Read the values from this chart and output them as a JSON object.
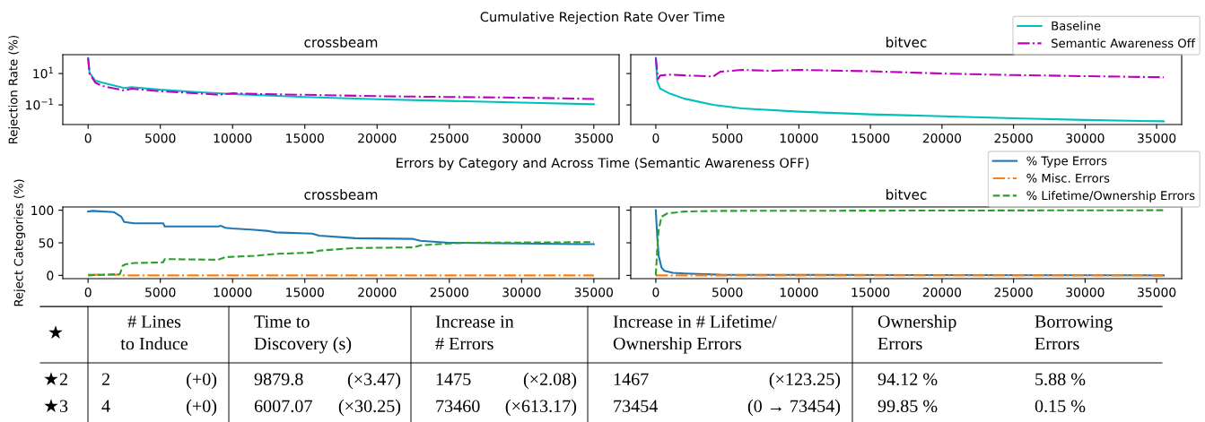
{
  "chart_data": [
    {
      "type": "line",
      "title": "crossbeam",
      "ylabel": "Rejection Rate (%)",
      "annotations": [
        "Cumulative Rejection Rate Over Time"
      ],
      "log": "y",
      "xlim": [
        -1750,
        36750
      ],
      "xticks": [
        0,
        5000,
        10000,
        15000,
        20000,
        25000,
        30000,
        35000
      ],
      "ylim": [
        0.0056,
        160
      ],
      "yticks": [
        {
          "value": 0.1,
          "label": "10$^{−1}$"
        },
        {
          "value": 10,
          "label": "10$^{1}$"
        }
      ],
      "grid": false,
      "legend": false,
      "series": [
        {
          "color": "#00bfbf",
          "line_style": "solid",
          "x": [
            0,
            100,
            500,
            1000,
            2500,
            3000,
            5000,
            7500,
            10000,
            15000,
            20000,
            25000,
            30000,
            35000
          ],
          "values": [
            100,
            11,
            3.5,
            2.6,
            1.2,
            1.35,
            0.93,
            0.66,
            0.49,
            0.32,
            0.23,
            0.18,
            0.14,
            0.11
          ]
        },
        {
          "color": "#bf00bf",
          "line_style": "dashdot",
          "x": [
            0,
            100,
            500,
            1000,
            2500,
            3000,
            5000,
            8000,
            9000,
            10000,
            12000,
            15000,
            20000,
            25000,
            30000,
            35000
          ],
          "values": [
            100,
            10,
            2.6,
            1.6,
            0.83,
            1.07,
            0.74,
            0.52,
            0.44,
            0.55,
            0.49,
            0.44,
            0.36,
            0.32,
            0.29,
            0.24
          ]
        }
      ]
    },
    {
      "type": "line",
      "title": "bitvec",
      "log": "y",
      "tick_labels": "x",
      "xlim": [
        -1750,
        36750
      ],
      "xticks": [
        0,
        5000,
        10000,
        15000,
        20000,
        25000,
        30000,
        35000
      ],
      "ylim": [
        0.0056,
        160
      ],
      "yticks": [
        {
          "value": 0.1,
          "label": null
        },
        {
          "value": 10,
          "label": null
        }
      ],
      "grid": false,
      "legend": "top right",
      "series": [
        {
          "name": "Baseline",
          "color": "#00bfbf",
          "line_style": "solid",
          "x": [
            0,
            100,
            300,
            1000,
            2000,
            4000,
            6000,
            10000,
            15000,
            20000,
            25000,
            30000,
            35500
          ],
          "values": [
            100,
            3.3,
            1.1,
            0.52,
            0.25,
            0.1,
            0.06,
            0.037,
            0.025,
            0.019,
            0.014,
            0.011,
            0.009
          ]
        },
        {
          "name": "Semantic Awareness Off",
          "color": "#bf00bf",
          "line_style": "dashdot",
          "x": [
            0,
            150,
            300,
            1000,
            2000,
            4000,
            4500,
            6000,
            8000,
            10000,
            15000,
            20000,
            25000,
            30000,
            35500
          ],
          "values": [
            100,
            4.4,
            7.6,
            8.5,
            7.6,
            6.5,
            13,
            17,
            15,
            17,
            14,
            10,
            8,
            6.8,
            5.8
          ]
        }
      ]
    },
    {
      "type": "line",
      "title": "crossbeam",
      "ylabel": "Reject Categories (%)",
      "annotations": [
        "Errors by Category and Across Time (Semantic Awareness OFF)"
      ],
      "xlim": [
        -1750,
        36750
      ],
      "xticks": [
        0,
        5000,
        10000,
        15000,
        20000,
        25000,
        30000,
        35000
      ],
      "ylim": [
        -5,
        105
      ],
      "yticks": [
        0,
        50,
        100
      ],
      "grid": false,
      "legend": false,
      "series": [
        {
          "color": "#1f77b4",
          "line_style": "solid",
          "x": [
            0,
            300,
            1800,
            2300,
            2500,
            3200,
            5200,
            5300,
            9000,
            9200,
            9500,
            10000,
            11500,
            12500,
            13000,
            15500,
            16000,
            18500,
            22500,
            23000,
            25000,
            30000,
            34000,
            35000
          ],
          "values": [
            98,
            99,
            97,
            90,
            82,
            80,
            80,
            75,
            75,
            76,
            73,
            72,
            70,
            68,
            66,
            64,
            61,
            57,
            56,
            53,
            50,
            49,
            48,
            48
          ]
        },
        {
          "color": "#ff7f0e",
          "line_style": "dashdot",
          "x": [
            0,
            2300,
            2400,
            35000
          ],
          "values": [
            1,
            1,
            0,
            0
          ]
        },
        {
          "color": "#2ca02c",
          "line_style": "dashed",
          "x": [
            0,
            2200,
            2400,
            2600,
            3200,
            5200,
            5300,
            9000,
            9500,
            11500,
            13000,
            15500,
            16000,
            18500,
            22500,
            23000,
            25000,
            26000,
            35000
          ],
          "values": [
            0,
            2,
            15,
            17,
            19,
            20,
            25,
            24,
            28,
            30,
            33,
            35,
            38,
            42,
            43,
            46,
            49,
            50,
            51
          ]
        }
      ]
    },
    {
      "type": "line",
      "title": "bitvec",
      "tick_labels": "x",
      "xlim": [
        -1750,
        36750
      ],
      "xticks": [
        0,
        5000,
        10000,
        15000,
        20000,
        25000,
        30000,
        35000
      ],
      "ylim": [
        -5,
        105
      ],
      "yticks": [
        {
          "value": 0,
          "label": null
        },
        {
          "value": 50,
          "label": null
        },
        {
          "value": 100,
          "label": null
        }
      ],
      "grid": false,
      "legend": "top right",
      "series": [
        {
          "name": "% Type Errors",
          "color": "#1f77b4",
          "line_style": "solid",
          "x": [
            0,
            100,
            200,
            400,
            600,
            1200,
            2000,
            4500,
            35500
          ],
          "values": [
            100,
            60,
            30,
            12,
            7,
            4,
            3,
            1,
            0
          ]
        },
        {
          "name": "% Misc. Errors",
          "color": "#ff7f0e",
          "line_style": "dashdot",
          "x": [
            0,
            35500
          ],
          "values": [
            0,
            0
          ]
        },
        {
          "name": "% Lifetime/Ownership Errors",
          "color": "#2ca02c",
          "line_style": "dashed",
          "x": [
            0,
            100,
            200,
            400,
            800,
            2000,
            4500,
            35500
          ],
          "values": [
            0,
            40,
            70,
            90,
            95,
            98,
            99,
            100
          ]
        }
      ]
    },
    {
      "type": "other",
      "annotations": [
        "★",
        "# Lines\nto Induce",
        "Time to\nDiscovery (s)",
        "Increase in\n# Errors",
        "Increase in # Lifetime/\nOwnership Errors",
        "Ownership\nErrors",
        "Borrowing\nErrors",
        "★2",
        "2",
        "(+0)",
        "9879.8",
        "(×3.47)",
        "1475",
        "(×2.08)",
        "1467",
        "(×123.25)",
        "94.12 %",
        "5.88 %",
        "★3",
        "4",
        "(+0)",
        "6007.07",
        "(×30.25)",
        "73460",
        "(×613.17)",
        "73454",
        "(0 → 73454)",
        "99.85 %",
        "0.15 %"
      ]
    }
  ]
}
